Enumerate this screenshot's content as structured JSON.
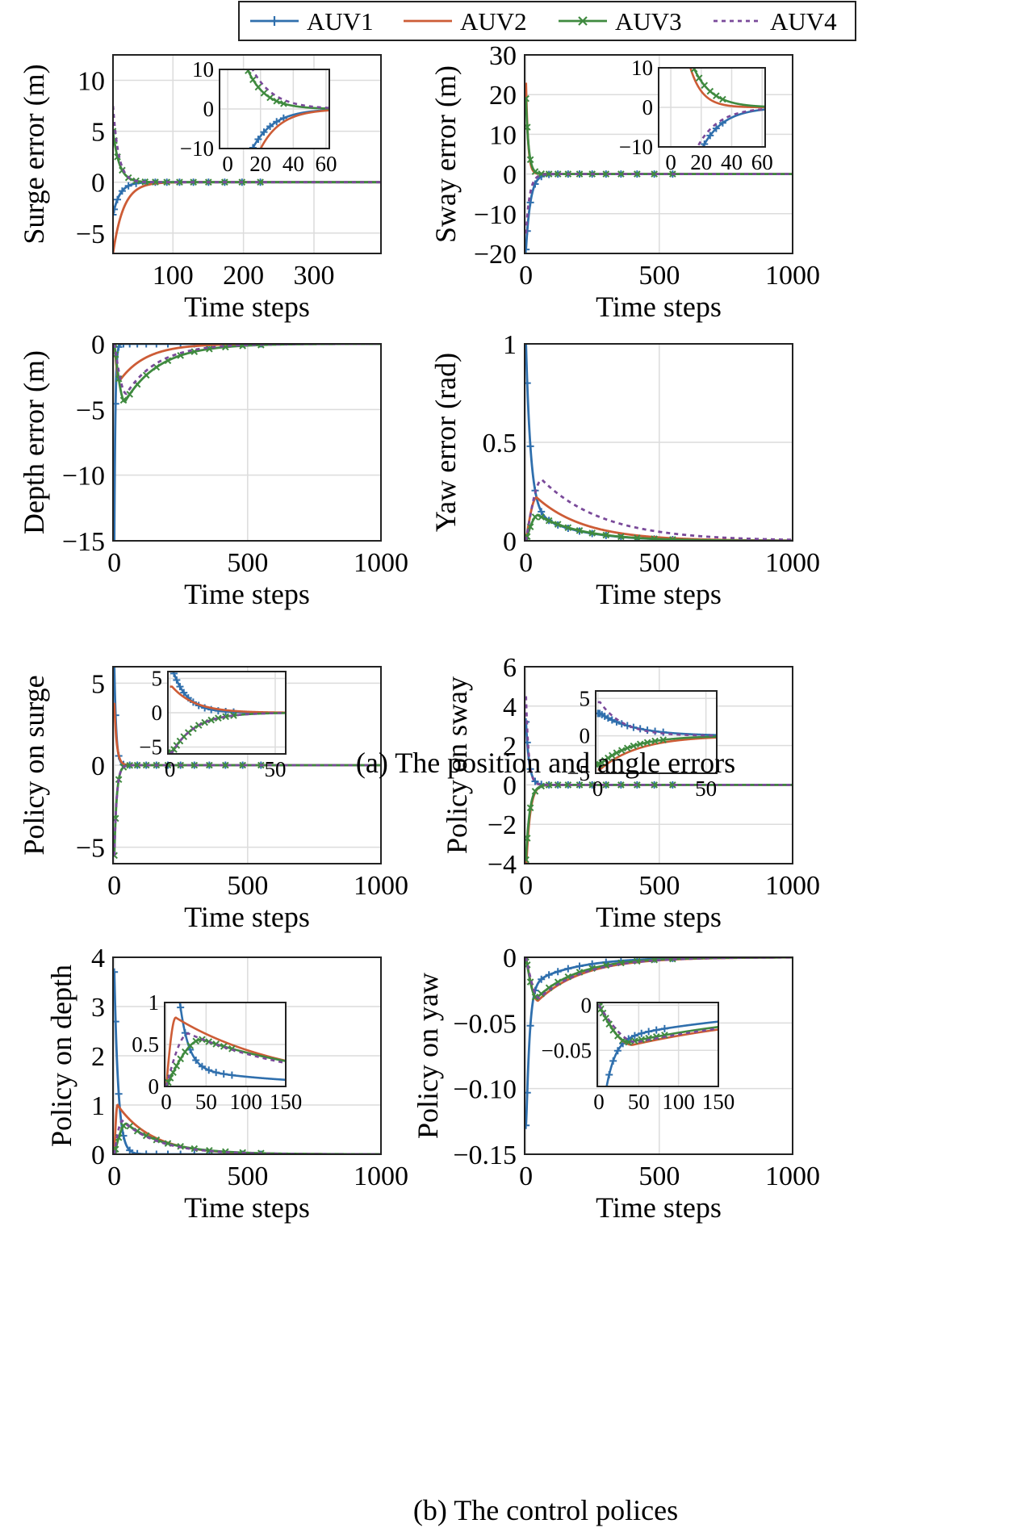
{
  "figure": {
    "legend": [
      {
        "name": "AUV1",
        "color": "#2f6fad",
        "marker": "plus",
        "dash": false
      },
      {
        "name": "AUV2",
        "color": "#cd5c36",
        "marker": "none",
        "dash": false
      },
      {
        "name": "AUV3",
        "color": "#3f8a3f",
        "marker": "cross",
        "dash": false
      },
      {
        "name": "AUV4",
        "color": "#7a4a9a",
        "marker": "none",
        "dash": true
      }
    ],
    "caption_a": "(a) The position and angle errors",
    "caption_b": "(b) The control polices"
  },
  "chart_data": [
    {
      "id": "surge",
      "type": "line",
      "xlabel": "Time steps",
      "ylabel": "Surge error (m)",
      "xlim": [
        15,
        395
      ],
      "ylim": [
        -7,
        12.5
      ],
      "xticks": [
        100,
        200,
        300
      ],
      "yticks": [
        -5,
        0,
        5,
        10
      ],
      "series": [
        {
          "name": "AUV1",
          "init": -3.2,
          "type": "exp",
          "tau": 10,
          "start": 15
        },
        {
          "name": "AUV2",
          "init": -7.0,
          "type": "exp",
          "tau": 15,
          "start": 15
        },
        {
          "name": "AUV3",
          "init": 5.0,
          "type": "exp",
          "tau": 9,
          "start": 15
        },
        {
          "name": "AUV4",
          "init": 7.5,
          "type": "exp",
          "tau": 8,
          "start": 15
        }
      ],
      "inset": {
        "xlim": [
          -5,
          62
        ],
        "ylim": [
          -10,
          10
        ],
        "xticks": [
          0,
          20,
          40,
          60
        ],
        "yticks": [
          -10,
          0,
          10
        ],
        "series": [
          {
            "name": "AUV1",
            "init": -32,
            "type": "exp",
            "tau": 13,
            "start": 0
          },
          {
            "name": "AUV2",
            "init": -50,
            "type": "exp",
            "tau": 12.5,
            "start": 0
          },
          {
            "name": "AUV3",
            "init": 30,
            "type": "exp",
            "tau": 11,
            "start": 0
          },
          {
            "name": "AUV4",
            "init": 32,
            "type": "exp",
            "tau": 13,
            "start": 0
          }
        ]
      }
    },
    {
      "id": "sway",
      "type": "line",
      "xlabel": "Time steps",
      "ylabel": "Sway error (m)",
      "xlim": [
        -5,
        1000
      ],
      "ylim": [
        -20,
        30
      ],
      "xticks": [
        0,
        500,
        1000
      ],
      "yticks": [
        -20,
        -10,
        0,
        10,
        20,
        30
      ],
      "series": [
        {
          "name": "AUV1",
          "init": -19,
          "type": "exp",
          "tau": 17,
          "start": 0
        },
        {
          "name": "AUV2",
          "init": 23,
          "type": "exp",
          "tau": 8,
          "start": 0
        },
        {
          "name": "AUV3",
          "init": 19,
          "type": "exp",
          "tau": 10,
          "start": 0
        },
        {
          "name": "AUV4",
          "init": -15,
          "type": "exp",
          "tau": 14,
          "start": 0
        }
      ],
      "inset": {
        "xlim": [
          -8,
          62
        ],
        "ylim": [
          -10,
          10
        ],
        "xticks": [
          0,
          20,
          40,
          60
        ],
        "yticks": [
          -10,
          0,
          10
        ],
        "series": [
          {
            "name": "AUV1",
            "init": -45,
            "type": "exp",
            "tau": 14,
            "start": 0
          },
          {
            "name": "AUV2",
            "init": 50,
            "type": "exp",
            "tau": 8,
            "start": 0
          },
          {
            "name": "AUV3",
            "init": 35,
            "type": "exp",
            "tau": 12,
            "start": 0
          },
          {
            "name": "AUV4",
            "init": -35,
            "type": "exp",
            "tau": 14,
            "start": 0
          }
        ]
      }
    },
    {
      "id": "depth",
      "type": "line",
      "xlabel": "Time steps",
      "ylabel": "Depth error (m)",
      "xlim": [
        -5,
        1000
      ],
      "ylim": [
        -15,
        0
      ],
      "xticks": [
        0,
        500,
        1000
      ],
      "yticks": [
        -15,
        -10,
        -5,
        0
      ],
      "series": [
        {
          "name": "AUV1",
          "init": -15,
          "type": "exp",
          "tau": 4,
          "start": 0
        },
        {
          "name": "AUV2",
          "peak": -2.8,
          "tpeak": 20,
          "type": "hump",
          "tau": 100
        },
        {
          "name": "AUV3",
          "peak": -4.4,
          "tpeak": 40,
          "type": "hump",
          "tau": 130
        },
        {
          "name": "AUV4",
          "peak": -3.8,
          "tpeak": 45,
          "type": "hump",
          "tau": 120
        }
      ]
    },
    {
      "id": "yaw",
      "type": "line",
      "xlabel": "Time steps",
      "ylabel": "Yaw error (rad)",
      "xlim": [
        -5,
        1000
      ],
      "ylim": [
        0,
        1.0
      ],
      "xticks": [
        0,
        500,
        1000
      ],
      "yticks": [
        0,
        0.5,
        1.0
      ],
      "series": [
        {
          "name": "AUV1",
          "init": 1.0,
          "type": "expfloor",
          "tau": 18,
          "floor": 0.16,
          "tau2": 170,
          "start": 0
        },
        {
          "name": "AUV2",
          "peak": 0.22,
          "tpeak": 40,
          "type": "hump",
          "tau": 180
        },
        {
          "name": "AUV3",
          "peak": 0.13,
          "tpeak": 45,
          "type": "hump",
          "tau": 170
        },
        {
          "name": "AUV4",
          "peak": 0.31,
          "tpeak": 60,
          "type": "hump",
          "tau": 230
        }
      ]
    },
    {
      "id": "p_surge",
      "type": "line",
      "xlabel": "Time steps",
      "ylabel": "Policy on surge",
      "xlim": [
        -5,
        1000
      ],
      "ylim": [
        -6,
        6
      ],
      "xticks": [
        0,
        500,
        1000
      ],
      "yticks": [
        -5,
        0,
        5
      ],
      "series": [
        {
          "name": "AUV1",
          "init": 6.0,
          "type": "exp",
          "tau": 7,
          "start": 0
        },
        {
          "name": "AUV2",
          "init": 3.8,
          "type": "exp",
          "tau": 9,
          "start": 0
        },
        {
          "name": "AUV3",
          "init": -5.5,
          "type": "exp",
          "tau": 9,
          "start": 0
        },
        {
          "name": "AUV4",
          "init": -5.5,
          "type": "exp",
          "tau": 9,
          "start": 0
        }
      ],
      "inset": {
        "xlim": [
          -1,
          55
        ],
        "ylim": [
          -6,
          6
        ],
        "xticks": [
          0,
          50
        ],
        "yticks": [
          -5,
          0,
          5
        ],
        "series": [
          {
            "name": "AUV1",
            "init": 6.5,
            "type": "exp",
            "tau": 7,
            "start": 1
          },
          {
            "name": "AUV2",
            "init": 3.8,
            "type": "exp",
            "tau": 11,
            "start": 1
          },
          {
            "name": "AUV3",
            "init": -5.8,
            "type": "exp",
            "tau": 11,
            "start": 1
          },
          {
            "name": "AUV4",
            "init": -5.8,
            "type": "exp",
            "tau": 11,
            "start": 1
          }
        ]
      }
    },
    {
      "id": "p_sway",
      "type": "line",
      "xlabel": "Time steps",
      "ylabel": "Policy on sway",
      "xlim": [
        -5,
        1000
      ],
      "ylim": [
        -4,
        6
      ],
      "xticks": [
        0,
        500,
        1000
      ],
      "yticks": [
        -4,
        -2,
        0,
        2,
        4,
        6
      ],
      "series": [
        {
          "name": "AUV1",
          "init": 3.2,
          "type": "exp",
          "tau": 12,
          "start": 0
        },
        {
          "name": "AUV2",
          "init": -4.5,
          "type": "exp",
          "tau": 14,
          "start": 0
        },
        {
          "name": "AUV3",
          "init": -3.8,
          "type": "exp",
          "tau": 14,
          "start": 0
        },
        {
          "name": "AUV4",
          "init": 4.5,
          "type": "exp",
          "tau": 10,
          "start": 0
        }
      ],
      "inset": {
        "xlim": [
          -1,
          55
        ],
        "ylim": [
          -5,
          6
        ],
        "xticks": [
          0,
          50
        ],
        "yticks": [
          -5,
          0,
          5
        ],
        "series": [
          {
            "name": "AUV1",
            "init": 3.0,
            "type": "exp",
            "tau": 16,
            "start": 1
          },
          {
            "name": "AUV2",
            "init": -4.5,
            "type": "exp",
            "tau": 18,
            "start": 1
          },
          {
            "name": "AUV3",
            "init": -3.8,
            "type": "exp",
            "tau": 15,
            "start": 1
          },
          {
            "name": "AUV4",
            "init": 4.5,
            "type": "exp",
            "tau": 11,
            "start": 1
          }
        ]
      }
    },
    {
      "id": "p_depth",
      "type": "line",
      "xlabel": "Time steps",
      "ylabel": "Policy on depth",
      "xlim": [
        -5,
        1000
      ],
      "ylim": [
        0,
        4
      ],
      "xticks": [
        0,
        500,
        1000
      ],
      "yticks": [
        0,
        1,
        2,
        3,
        4
      ],
      "series": [
        {
          "name": "AUV1",
          "init": 3.7,
          "type": "exp",
          "tau": 15,
          "start": 0
        },
        {
          "name": "AUV2",
          "peak": 1.0,
          "tpeak": 12,
          "type": "hump",
          "tau": 130
        },
        {
          "name": "AUV3",
          "peak": 0.62,
          "tpeak": 45,
          "type": "hump",
          "tau": 150
        },
        {
          "name": "AUV4",
          "peak": 0.68,
          "tpeak": 30,
          "type": "hump",
          "tau": 140
        }
      ],
      "inset": {
        "xlim": [
          -2,
          150
        ],
        "ylim": [
          0,
          1.0
        ],
        "xticks": [
          0,
          50,
          100,
          150
        ],
        "yticks": [
          0,
          0.5,
          1.0
        ],
        "series": [
          {
            "name": "AUV1",
            "init": 3.7,
            "type": "exp",
            "tau": 11,
            "start": 0,
            "floor": 0.25,
            "tau2": 130
          },
          {
            "name": "AUV2",
            "peak": 0.82,
            "tpeak": 12,
            "type": "hump",
            "tau": 140
          },
          {
            "name": "AUV3",
            "peak": 0.56,
            "tpeak": 45,
            "type": "hump",
            "tau": 170
          },
          {
            "name": "AUV4",
            "peak": 0.63,
            "tpeak": 28,
            "type": "hump",
            "tau": 150
          }
        ]
      }
    },
    {
      "id": "p_yaw",
      "type": "line",
      "xlabel": "Time steps",
      "ylabel": "Policy on yaw",
      "xlim": [
        -5,
        1000
      ],
      "ylim": [
        -0.15,
        0
      ],
      "xticks": [
        0,
        500,
        1000
      ],
      "yticks": [
        -0.15,
        -0.1,
        -0.05,
        0
      ],
      "ytickLabels": [
        "−0.15",
        "−0.10",
        "−0.05",
        "0"
      ],
      "series": [
        {
          "name": "AUV1",
          "init": -0.128,
          "type": "exp",
          "tau": 12,
          "start": 0,
          "floor": -0.022,
          "tau2": 170
        },
        {
          "name": "AUV2",
          "peak": -0.033,
          "tpeak": 45,
          "type": "hump",
          "tau": 170
        },
        {
          "name": "AUV3",
          "peak": -0.031,
          "tpeak": 40,
          "type": "hump",
          "tau": 160
        },
        {
          "name": "AUV4",
          "peak": -0.031,
          "tpeak": 50,
          "type": "hump",
          "tau": 170
        }
      ],
      "inset": {
        "xlim": [
          -2,
          150
        ],
        "ylim": [
          -0.09,
          0.003
        ],
        "xticks": [
          0,
          50,
          100,
          150
        ],
        "yticks": [
          -0.05,
          0
        ],
        "series": [
          {
            "name": "AUV1",
            "init": -0.13,
            "type": "exp",
            "tau": 11,
            "start": 0,
            "floor": -0.04,
            "tau2": 190
          },
          {
            "name": "AUV2",
            "peak": -0.044,
            "tpeak": 42,
            "type": "hump",
            "tau": 220
          },
          {
            "name": "AUV3",
            "peak": -0.041,
            "tpeak": 38,
            "type": "hump",
            "tau": 210
          },
          {
            "name": "AUV4",
            "peak": -0.041,
            "tpeak": 48,
            "type": "hump",
            "tau": 220
          }
        ]
      }
    }
  ]
}
